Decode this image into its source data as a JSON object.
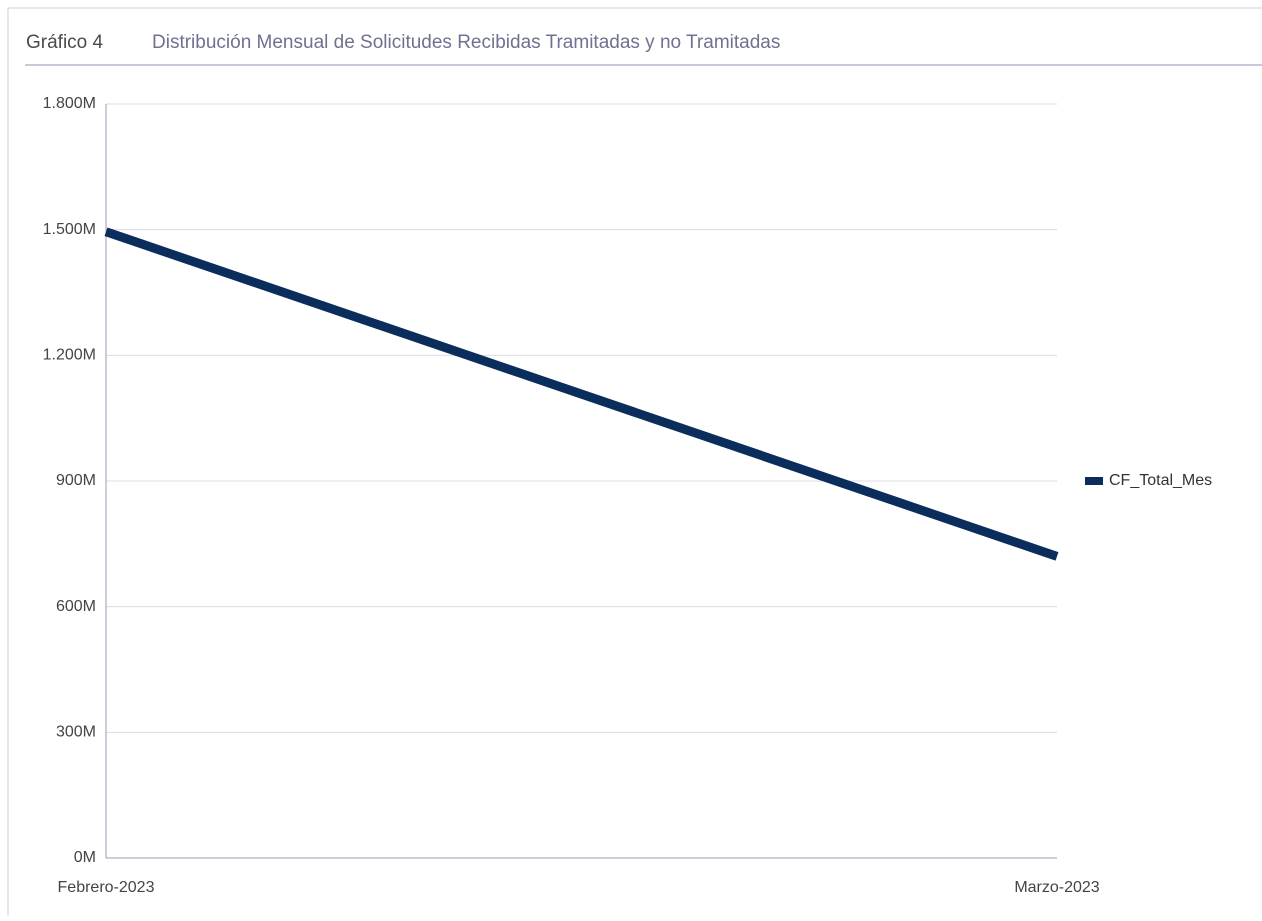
{
  "chart_data": {
    "type": "line",
    "title": "Gráfico 4",
    "subtitle": "Distribución Mensual de Solicitudes Recibidas Tramitadas y no Tramitadas",
    "categories": [
      "Febrero-2023",
      "Marzo-2023"
    ],
    "series": [
      {
        "name": "CF_Total_Mes",
        "color": "#0b2d5b",
        "values": [
          1495,
          720
        ]
      }
    ],
    "ylim": [
      0,
      1800
    ],
    "yticks": [
      {
        "value": 0,
        "label": "0M"
      },
      {
        "value": 300,
        "label": "300M"
      },
      {
        "value": 600,
        "label": "600M"
      },
      {
        "value": 900,
        "label": "900M"
      },
      {
        "value": 1200,
        "label": "1.200M"
      },
      {
        "value": 1500,
        "label": "1.500M"
      },
      {
        "value": 1800,
        "label": "1.800M"
      }
    ],
    "grid": true,
    "legend": "right"
  }
}
